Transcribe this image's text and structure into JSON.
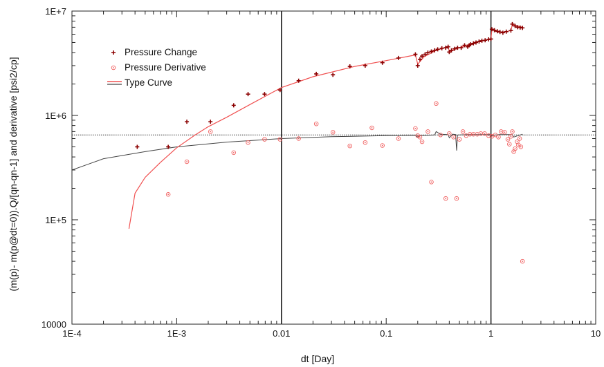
{
  "chart_data": {
    "type": "scatter",
    "x_scale": "log",
    "y_scale": "log",
    "xlim": [
      0.0001,
      10
    ],
    "ylim": [
      10000,
      10000000
    ],
    "x_ticks": [
      "1E-4",
      "1E-3",
      "0.01",
      "0.1",
      "1",
      "10"
    ],
    "y_ticks": [
      "10000",
      "1E+5",
      "1E+6",
      "1E+7"
    ],
    "xlabel": "dt [Day]",
    "ylabel": "(m(p)- m(p@dt=0)).Q/[qn-qn-1] and derivative [psi2/cp]",
    "legend": {
      "placement": "top-left",
      "entries": [
        "Pressure Change",
        "Pressure Derivative",
        "Type Curve"
      ]
    },
    "colors": {
      "pressure_change": "#8b0000",
      "pressure_derivative": "#f06060",
      "type_curve_change": "#f05050",
      "type_curve_derivative": "#444444",
      "reference_line": "#333333",
      "vertical_lines": "#222222"
    },
    "reference_line_y": 650000,
    "vertical_lines_x": [
      0.01,
      1
    ],
    "series": [
      {
        "name": "Pressure Change",
        "marker": "plus",
        "points": [
          [
            0.00042,
            500000
          ],
          [
            0.00083,
            500000
          ],
          [
            0.00125,
            870000
          ],
          [
            0.0021,
            870000
          ],
          [
            0.0035,
            1250000
          ],
          [
            0.0048,
            1600000
          ],
          [
            0.0069,
            1600000
          ],
          [
            0.0097,
            1750000
          ],
          [
            0.0146,
            2150000
          ],
          [
            0.0215,
            2500000
          ],
          [
            0.031,
            2450000
          ],
          [
            0.045,
            2950000
          ],
          [
            0.063,
            3000000
          ],
          [
            0.092,
            3200000
          ],
          [
            0.131,
            3550000
          ],
          [
            0.19,
            3850000
          ],
          [
            0.2,
            3000000
          ],
          [
            0.21,
            3450000
          ],
          [
            0.22,
            3700000
          ],
          [
            0.235,
            3850000
          ],
          [
            0.25,
            4000000
          ],
          [
            0.27,
            4100000
          ],
          [
            0.29,
            4200000
          ],
          [
            0.31,
            4300000
          ],
          [
            0.34,
            4400000
          ],
          [
            0.37,
            4450000
          ],
          [
            0.39,
            4550000
          ],
          [
            0.4,
            4050000
          ],
          [
            0.42,
            4200000
          ],
          [
            0.45,
            4350000
          ],
          [
            0.48,
            4450000
          ],
          [
            0.52,
            4450000
          ],
          [
            0.56,
            4700000
          ],
          [
            0.6,
            4550000
          ],
          [
            0.62,
            4700000
          ],
          [
            0.64,
            4800000
          ],
          [
            0.68,
            4900000
          ],
          [
            0.72,
            5000000
          ],
          [
            0.77,
            5100000
          ],
          [
            0.82,
            5200000
          ],
          [
            0.88,
            5250000
          ],
          [
            0.95,
            5350000
          ],
          [
            1.0,
            5400000
          ],
          [
            1.02,
            6700000
          ],
          [
            1.08,
            6550000
          ],
          [
            1.15,
            6400000
          ],
          [
            1.22,
            6300000
          ],
          [
            1.3,
            6200000
          ],
          [
            1.4,
            6350000
          ],
          [
            1.55,
            6500000
          ],
          [
            1.6,
            7500000
          ],
          [
            1.7,
            7200000
          ],
          [
            1.8,
            7000000
          ],
          [
            1.9,
            6950000
          ],
          [
            2.0,
            6900000
          ]
        ]
      },
      {
        "name": "Pressure Derivative",
        "marker": "circle-dot",
        "points": [
          [
            0.00083,
            175000
          ],
          [
            0.00125,
            360000
          ],
          [
            0.0021,
            700000
          ],
          [
            0.0035,
            440000
          ],
          [
            0.0048,
            550000
          ],
          [
            0.0069,
            590000
          ],
          [
            0.0097,
            590000
          ],
          [
            0.0146,
            600000
          ],
          [
            0.0215,
            830000
          ],
          [
            0.031,
            690000
          ],
          [
            0.045,
            510000
          ],
          [
            0.063,
            550000
          ],
          [
            0.073,
            760000
          ],
          [
            0.092,
            515000
          ],
          [
            0.131,
            600000
          ],
          [
            0.19,
            750000
          ],
          [
            0.2,
            640000
          ],
          [
            0.21,
            620000
          ],
          [
            0.22,
            560000
          ],
          [
            0.25,
            700000
          ],
          [
            0.27,
            230000
          ],
          [
            0.3,
            1300000
          ],
          [
            0.33,
            650000
          ],
          [
            0.37,
            160000
          ],
          [
            0.4,
            670000
          ],
          [
            0.44,
            620000
          ],
          [
            0.47,
            160000
          ],
          [
            0.5,
            590000
          ],
          [
            0.54,
            700000
          ],
          [
            0.58,
            640000
          ],
          [
            0.63,
            660000
          ],
          [
            0.68,
            660000
          ],
          [
            0.74,
            660000
          ],
          [
            0.8,
            670000
          ],
          [
            0.87,
            670000
          ],
          [
            0.95,
            640000
          ],
          [
            1.02,
            630000
          ],
          [
            1.1,
            650000
          ],
          [
            1.18,
            620000
          ],
          [
            1.25,
            700000
          ],
          [
            1.35,
            690000
          ],
          [
            1.45,
            590000
          ],
          [
            1.5,
            530000
          ],
          [
            1.55,
            630000
          ],
          [
            1.6,
            700000
          ],
          [
            1.65,
            450000
          ],
          [
            1.7,
            480000
          ],
          [
            1.78,
            560000
          ],
          [
            1.83,
            520000
          ],
          [
            1.88,
            600000
          ],
          [
            1.93,
            500000
          ],
          [
            2.0,
            40000
          ]
        ]
      }
    ],
    "type_curve": {
      "change": [
        [
          0.00035,
          82000
        ],
        [
          0.0004,
          180000
        ],
        [
          0.0005,
          255000
        ],
        [
          0.0007,
          355000
        ],
        [
          0.001,
          490000
        ],
        [
          0.0015,
          650000
        ],
        [
          0.002,
          780000
        ],
        [
          0.003,
          960000
        ],
        [
          0.005,
          1270000
        ],
        [
          0.01,
          1850000
        ],
        [
          0.02,
          2350000
        ],
        [
          0.05,
          2950000
        ],
        [
          0.1,
          3350000
        ],
        [
          0.19,
          3800000
        ],
        [
          0.2,
          3100000
        ],
        [
          0.23,
          3650000
        ],
        [
          0.3,
          4200000
        ],
        [
          0.39,
          4550000
        ],
        [
          0.4,
          4100000
        ],
        [
          0.5,
          4450000
        ],
        [
          0.7,
          5000000
        ],
        [
          1.0,
          5400000
        ],
        [
          1.02,
          6600000
        ],
        [
          1.3,
          6250000
        ],
        [
          1.55,
          6500000
        ],
        [
          1.6,
          7400000
        ],
        [
          2.0,
          7000000
        ]
      ],
      "derivative": [
        [
          0.0001,
          300000
        ],
        [
          0.0002,
          385000
        ],
        [
          0.0005,
          450000
        ],
        [
          0.001,
          500000
        ],
        [
          0.003,
          555000
        ],
        [
          0.01,
          600000
        ],
        [
          0.03,
          625000
        ],
        [
          0.1,
          640000
        ],
        [
          0.19,
          645000
        ],
        [
          0.2,
          620000
        ],
        [
          0.21,
          640000
        ],
        [
          0.29,
          650000
        ],
        [
          0.3,
          700000
        ],
        [
          0.33,
          660000
        ],
        [
          0.39,
          655000
        ],
        [
          0.4,
          610000
        ],
        [
          0.43,
          660000
        ],
        [
          0.46,
          655000
        ],
        [
          0.47,
          460000
        ],
        [
          0.48,
          650000
        ],
        [
          0.6,
          655000
        ],
        [
          1.0,
          655000
        ],
        [
          1.02,
          640000
        ],
        [
          1.2,
          655000
        ],
        [
          1.6,
          655000
        ],
        [
          1.65,
          620000
        ],
        [
          2.0,
          660000
        ]
      ]
    }
  }
}
